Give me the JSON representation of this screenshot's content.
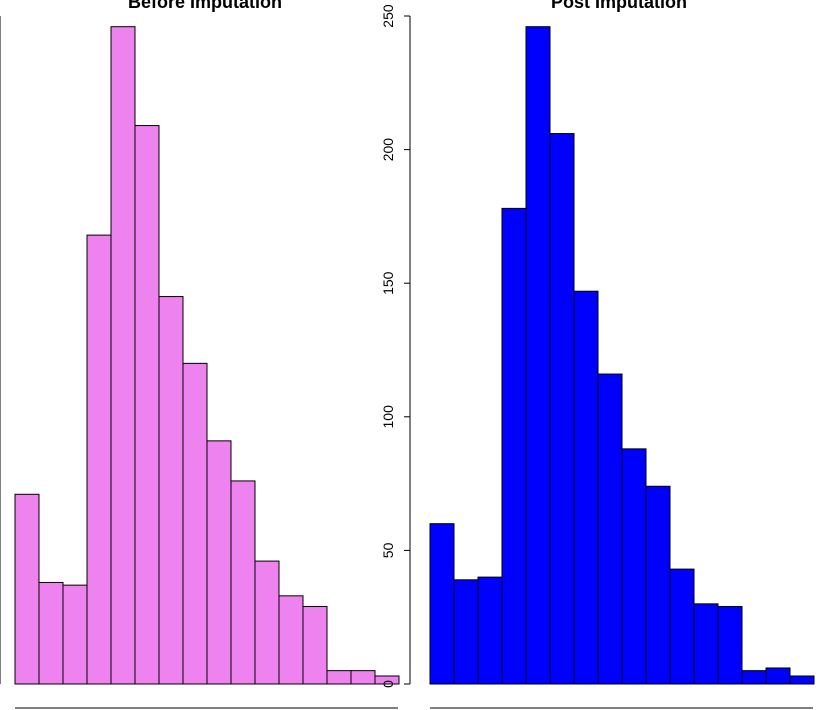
{
  "chart_data": [
    {
      "type": "bar",
      "title": "Before Imputation",
      "color": "#ee82ee",
      "values": [
        71,
        38,
        37,
        168,
        246,
        209,
        145,
        120,
        91,
        76,
        46,
        33,
        29,
        5,
        5,
        3
      ],
      "ylim": [
        0,
        250
      ],
      "yticks": [],
      "xlabel": "",
      "ylabel": "",
      "grid": false
    },
    {
      "type": "bar",
      "title": "Post Imputation",
      "color": "#0000ff",
      "values": [
        60,
        39,
        40,
        178,
        246,
        206,
        147,
        116,
        88,
        74,
        43,
        30,
        29,
        5,
        6,
        3
      ],
      "ylim": [
        0,
        250
      ],
      "yticks": [
        "0",
        "50",
        "100",
        "150",
        "200",
        "250"
      ],
      "xlabel": "",
      "ylabel": "",
      "grid": false
    }
  ]
}
